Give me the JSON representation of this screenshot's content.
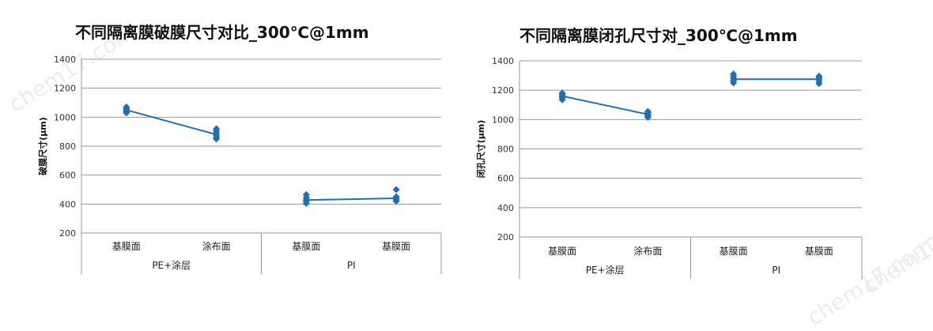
{
  "watermark": "chem17.com",
  "chart_data": [
    {
      "type": "line",
      "title": "不同隔离膜破膜尺寸对比_300℃@1mm",
      "ylabel": "破膜尺寸(μm)",
      "ylim": [
        200,
        1400
      ],
      "yticks": [
        200,
        400,
        600,
        800,
        1000,
        1200,
        1400
      ],
      "grid": true,
      "categories": [
        "基膜面",
        "涂布面",
        "基膜面",
        "基膜面"
      ],
      "groups": [
        {
          "label": "PE+涂层",
          "span": 2
        },
        {
          "label": "PI",
          "span": 2
        }
      ],
      "color": "#1f6fb5",
      "lines": [
        {
          "x": [
            0,
            1
          ],
          "y": [
            1050,
            880
          ]
        },
        {
          "x": [
            2,
            3
          ],
          "y": [
            428,
            440
          ]
        }
      ],
      "points": [
        [
          1030,
          1040,
          1050,
          1060,
          1070
        ],
        [
          850,
          860,
          875,
          890,
          905,
          920
        ],
        [
          405,
          420,
          430,
          445,
          465
        ],
        [
          420,
          430,
          440,
          450,
          500
        ]
      ]
    },
    {
      "type": "line",
      "title": "不同隔离膜闭孔尺寸对_300℃@1mm",
      "ylabel": "闭孔尺寸(μm)",
      "ylim": [
        200,
        1400
      ],
      "yticks": [
        200,
        400,
        600,
        800,
        1000,
        1200,
        1400
      ],
      "grid": true,
      "categories": [
        "基膜面",
        "涂布面",
        "基膜面",
        "基膜面"
      ],
      "groups": [
        {
          "label": "PE+涂层",
          "span": 2
        },
        {
          "label": "PI",
          "span": 2
        }
      ],
      "color": "#1f6fb5",
      "lines": [
        {
          "x": [
            0,
            1
          ],
          "y": [
            1160,
            1035
          ]
        },
        {
          "x": [
            2,
            3
          ],
          "y": [
            1275,
            1275
          ]
        }
      ],
      "points": [
        [
          1135,
          1150,
          1160,
          1170,
          1180
        ],
        [
          1015,
          1025,
          1035,
          1045,
          1055
        ],
        [
          1250,
          1265,
          1280,
          1295,
          1310
        ],
        [
          1245,
          1260,
          1275,
          1285,
          1295
        ]
      ]
    }
  ]
}
